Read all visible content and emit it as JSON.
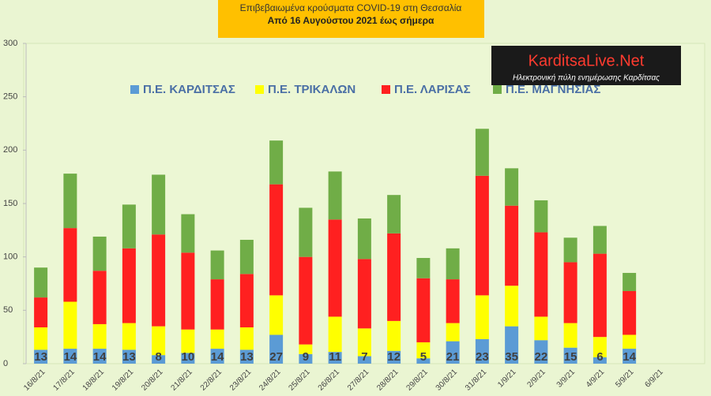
{
  "chart_data": {
    "type": "stacked_bar",
    "title": "Επιβεβαιωμένα κρούσματα COVID-19 στη Θεσσαλία",
    "subtitle": "Από 16 Αυγούστου 2021 έως σήμερα",
    "categories": [
      "16/8/21",
      "17/8/21",
      "18/8/21",
      "19/8/21",
      "20/8/21",
      "21/8/21",
      "22/8/21",
      "23/8/21",
      "24/8/21",
      "25/8/21",
      "26/8/21",
      "27/8/21",
      "28/8/21",
      "29/8/21",
      "30/8/21",
      "31/8/21",
      "1/9/21",
      "2/9/21",
      "3/9/21",
      "4/9/21",
      "5/9/21",
      "6/9/21"
    ],
    "series": [
      {
        "name": "Π.Ε. ΚΑΡΔΙΤΣΑΣ",
        "color": "#5b9bd5",
        "values": [
          13,
          14,
          14,
          13,
          8,
          10,
          14,
          13,
          27,
          9,
          11,
          7,
          12,
          5,
          21,
          23,
          35,
          22,
          15,
          6,
          14,
          null
        ]
      },
      {
        "name": "Π.Ε. ΤΡΙΚΑΛΩΝ",
        "color": "#ffff00",
        "values": [
          21,
          44,
          23,
          25,
          27,
          22,
          18,
          21,
          37,
          9,
          33,
          26,
          28,
          15,
          17,
          41,
          38,
          22,
          23,
          19,
          13,
          null
        ]
      },
      {
        "name": "Π.Ε. ΛΑΡΙΣΑΣ",
        "color": "#ff2020",
        "values": [
          28,
          69,
          50,
          70,
          86,
          72,
          47,
          50,
          104,
          82,
          91,
          65,
          82,
          60,
          41,
          112,
          75,
          79,
          57,
          78,
          41,
          null
        ]
      },
      {
        "name": "Π.Ε. ΜΑΓΝΗΣΙΑΣ",
        "color": "#70ad47",
        "values": [
          28,
          51,
          32,
          41,
          56,
          36,
          27,
          32,
          41,
          46,
          45,
          38,
          36,
          19,
          29,
          44,
          35,
          30,
          23,
          26,
          17,
          null
        ]
      }
    ],
    "label_series": 0,
    "ylim": [
      0,
      300
    ],
    "yticks": [
      0,
      50,
      100,
      150,
      200,
      250,
      300
    ],
    "grid": false
  },
  "logo": {
    "name": "KarditsaLive.Net",
    "tagline": "Ηλεκτρονική πύλη ενημέρωσης Καρδίτσας"
  }
}
